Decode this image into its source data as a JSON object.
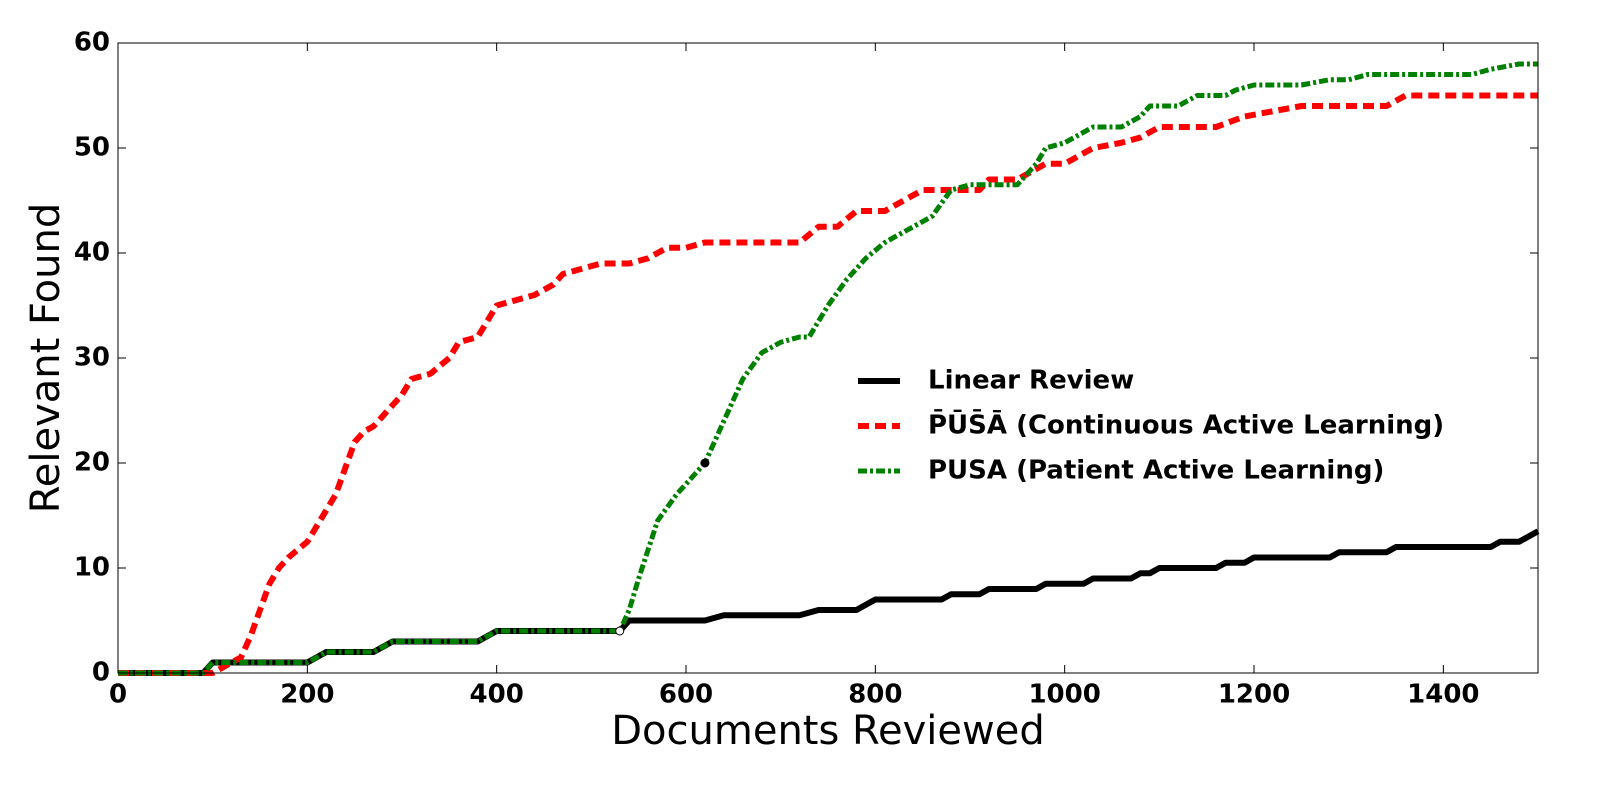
{
  "chart_data": {
    "type": "line",
    "xlabel": "Documents Reviewed",
    "ylabel": "Relevant Found",
    "xlim": [
      0,
      1500
    ],
    "ylim": [
      0,
      60
    ],
    "xticks": [
      0,
      200,
      400,
      600,
      800,
      1000,
      1200,
      1400
    ],
    "yticks": [
      0,
      10,
      20,
      30,
      40,
      50,
      60
    ],
    "grid": false,
    "legend": "center right",
    "series": [
      {
        "name": "Linear Review",
        "color": "#000000",
        "style": "solid",
        "x": [
          0,
          90,
          100,
          200,
          220,
          270,
          290,
          380,
          400,
          530,
          540,
          620,
          640,
          720,
          740,
          780,
          800,
          870,
          880,
          910,
          920,
          970,
          980,
          1020,
          1030,
          1070,
          1080,
          1090,
          1100,
          1160,
          1170,
          1190,
          1200,
          1280,
          1290,
          1340,
          1350,
          1450,
          1460,
          1480,
          1500
        ],
        "values": [
          0,
          0,
          1,
          1,
          2,
          2,
          3,
          3,
          4,
          4,
          5,
          5,
          5.5,
          5.5,
          6,
          6,
          7,
          7,
          7.5,
          7.5,
          8,
          8,
          8.5,
          8.5,
          9,
          9,
          9.5,
          9.5,
          10,
          10,
          10.5,
          10.5,
          11,
          11,
          11.5,
          11.5,
          12,
          12,
          12.5,
          12.5,
          13.5
        ]
      },
      {
        "name": "P̄ŪS̄Ā (Continuous Active Learning)",
        "color": "#ff0000",
        "style": "dashed",
        "x": [
          0,
          100,
          110,
          130,
          140,
          160,
          170,
          180,
          200,
          210,
          230,
          250,
          260,
          270,
          290,
          300,
          310,
          330,
          350,
          360,
          380,
          400,
          420,
          440,
          460,
          470,
          490,
          510,
          540,
          560,
          580,
          600,
          620,
          720,
          740,
          760,
          780,
          810,
          850,
          910,
          920,
          950,
          980,
          1000,
          1030,
          1060,
          1080,
          1100,
          1160,
          1190,
          1220,
          1250,
          1340,
          1360,
          1500
        ],
        "values": [
          0,
          0,
          0.5,
          1.5,
          3.5,
          8.5,
          10,
          11,
          12.5,
          14,
          17,
          22,
          23,
          23.5,
          25.5,
          26.5,
          28,
          28.5,
          30,
          31.5,
          32,
          35,
          35.5,
          36,
          37,
          38,
          38.5,
          39,
          39,
          39.5,
          40.5,
          40.5,
          41,
          41,
          42.5,
          42.5,
          44,
          44,
          46,
          46,
          47,
          47,
          48.5,
          48.5,
          50,
          50.5,
          51,
          52,
          52,
          53,
          53.5,
          54,
          54,
          55,
          55
        ]
      },
      {
        "name": "PUSA (Patient Active Learning)",
        "color": "#008000",
        "style": "dashdot",
        "x": [
          0,
          90,
          100,
          200,
          220,
          270,
          290,
          380,
          400,
          530,
          540,
          550,
          570,
          590,
          610,
          620,
          640,
          660,
          680,
          700,
          720,
          730,
          750,
          770,
          790,
          810,
          830,
          860,
          880,
          900,
          950,
          970,
          980,
          1000,
          1030,
          1060,
          1080,
          1090,
          1120,
          1140,
          1170,
          1180,
          1200,
          1250,
          1280,
          1300,
          1320,
          1430,
          1450,
          1480,
          1500
        ],
        "values": [
          0,
          0,
          1,
          1,
          2,
          2,
          3,
          3,
          4,
          4,
          6,
          9,
          14.5,
          17,
          19,
          20,
          24,
          28,
          30.5,
          31.5,
          32,
          32,
          35,
          37.5,
          39.5,
          41,
          42,
          43.5,
          46,
          46.5,
          46.5,
          48.5,
          50,
          50.5,
          52,
          52,
          53,
          54,
          54,
          55,
          55,
          55.5,
          56,
          56,
          56.5,
          56.5,
          57,
          57,
          57.5,
          58,
          58
        ]
      }
    ],
    "markers": [
      {
        "x": 530,
        "y": 4,
        "color": "#ffffff"
      },
      {
        "x": 620,
        "y": 20,
        "color": "#000000"
      }
    ]
  }
}
